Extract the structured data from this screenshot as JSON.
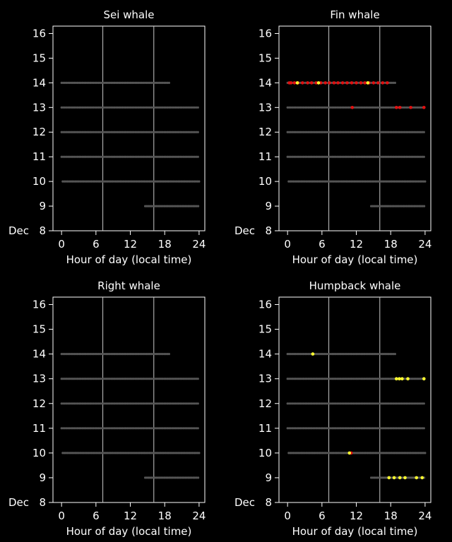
{
  "colors": {
    "background": "#000000",
    "axes": "#ffffff",
    "no_detection": "#555555",
    "detection": "#e01010",
    "possible": "#ffff30",
    "daylight_line": "#c8c8c8"
  },
  "chart_data": [
    {
      "type": "scatter",
      "title": "Sei whale",
      "xlabel": "Hour of day (local time)",
      "ylabel": "",
      "month_label": "Dec",
      "xlim": [
        -1.5,
        25
      ],
      "ylim": [
        8,
        16.3
      ],
      "xticks": [
        0,
        6,
        12,
        18,
        24
      ],
      "yticks": [
        8,
        9,
        10,
        11,
        12,
        13,
        14,
        15,
        16
      ],
      "sunrise_hour": 7.2,
      "sunset_hour": 16.1,
      "effort": [
        {
          "day": 9,
          "start": 14.6,
          "end": 24
        },
        {
          "day": 10,
          "start": 0.2,
          "end": 24
        },
        {
          "day": 11,
          "start": 0,
          "end": 24
        },
        {
          "day": 12,
          "start": 0,
          "end": 24
        },
        {
          "day": 13,
          "start": 0,
          "end": 24
        },
        {
          "day": 14,
          "start": 0,
          "end": 18.8
        }
      ],
      "detections": [],
      "possible": []
    },
    {
      "type": "scatter",
      "title": "Fin whale",
      "xlabel": "Hour of day (local time)",
      "ylabel": "",
      "month_label": "Dec",
      "xlim": [
        -1.5,
        25
      ],
      "ylim": [
        8,
        16.3
      ],
      "xticks": [
        0,
        6,
        12,
        18,
        24
      ],
      "yticks": [
        8,
        9,
        10,
        11,
        12,
        13,
        14,
        15,
        16
      ],
      "sunrise_hour": 7.2,
      "sunset_hour": 16.1,
      "effort": [
        {
          "day": 9,
          "start": 14.6,
          "end": 24
        },
        {
          "day": 10,
          "start": 0.2,
          "end": 24
        },
        {
          "day": 11,
          "start": 0,
          "end": 24
        },
        {
          "day": 12,
          "start": 0,
          "end": 24
        },
        {
          "day": 13,
          "start": 0,
          "end": 24
        },
        {
          "day": 14,
          "start": 0,
          "end": 18.8
        }
      ],
      "detections": [
        {
          "day": 14,
          "hours": [
            0.3,
            0.6,
            1.2,
            1.8,
            2.6,
            3.5,
            4.2,
            5.0,
            5.8,
            6.6,
            7.3,
            8.1,
            8.8,
            9.6,
            10.4,
            11.2,
            12.0,
            12.8,
            13.5,
            14.2,
            15.0,
            15.8,
            16.6,
            17.4
          ]
        },
        {
          "day": 13,
          "hours": [
            11.3,
            19.0,
            19.6,
            21.5,
            23.8
          ]
        },
        {
          "day": 10,
          "hours": []
        }
      ],
      "possible": [
        {
          "day": 14,
          "hours": [
            1.7,
            5.4,
            14.0
          ]
        }
      ]
    },
    {
      "type": "scatter",
      "title": "Right whale",
      "xlabel": "Hour of day (local time)",
      "ylabel": "",
      "month_label": "Dec",
      "xlim": [
        -1.5,
        25
      ],
      "ylim": [
        8,
        16.3
      ],
      "xticks": [
        0,
        6,
        12,
        18,
        24
      ],
      "yticks": [
        8,
        9,
        10,
        11,
        12,
        13,
        14,
        15,
        16
      ],
      "sunrise_hour": 7.2,
      "sunset_hour": 16.1,
      "effort": [
        {
          "day": 9,
          "start": 14.6,
          "end": 24
        },
        {
          "day": 10,
          "start": 0.2,
          "end": 24
        },
        {
          "day": 11,
          "start": 0,
          "end": 24
        },
        {
          "day": 12,
          "start": 0,
          "end": 24
        },
        {
          "day": 13,
          "start": 0,
          "end": 24
        },
        {
          "day": 14,
          "start": 0,
          "end": 18.8
        }
      ],
      "detections": [],
      "possible": []
    },
    {
      "type": "scatter",
      "title": "Humpback whale",
      "xlabel": "Hour of day (local time)",
      "ylabel": "",
      "month_label": "Dec",
      "xlim": [
        -1.5,
        25
      ],
      "ylim": [
        8,
        16.3
      ],
      "xticks": [
        0,
        6,
        12,
        18,
        24
      ],
      "yticks": [
        8,
        9,
        10,
        11,
        12,
        13,
        14,
        15,
        16
      ],
      "sunrise_hour": 7.2,
      "sunset_hour": 16.1,
      "effort": [
        {
          "day": 9,
          "start": 14.6,
          "end": 24
        },
        {
          "day": 10,
          "start": 0.2,
          "end": 24
        },
        {
          "day": 11,
          "start": 0,
          "end": 24
        },
        {
          "day": 12,
          "start": 0,
          "end": 24
        },
        {
          "day": 13,
          "start": 0,
          "end": 24
        },
        {
          "day": 14,
          "start": 0,
          "end": 18.8
        }
      ],
      "detections": [
        {
          "day": 10,
          "hours": [
            11.1
          ]
        }
      ],
      "possible": [
        {
          "day": 14,
          "hours": [
            4.4
          ]
        },
        {
          "day": 13,
          "hours": [
            19.0,
            19.5,
            20.0,
            21.0,
            23.8
          ]
        },
        {
          "day": 10,
          "hours": [
            10.8
          ]
        },
        {
          "day": 9,
          "hours": [
            17.7,
            18.6,
            19.6,
            20.5,
            22.5,
            23.5
          ]
        }
      ]
    }
  ]
}
